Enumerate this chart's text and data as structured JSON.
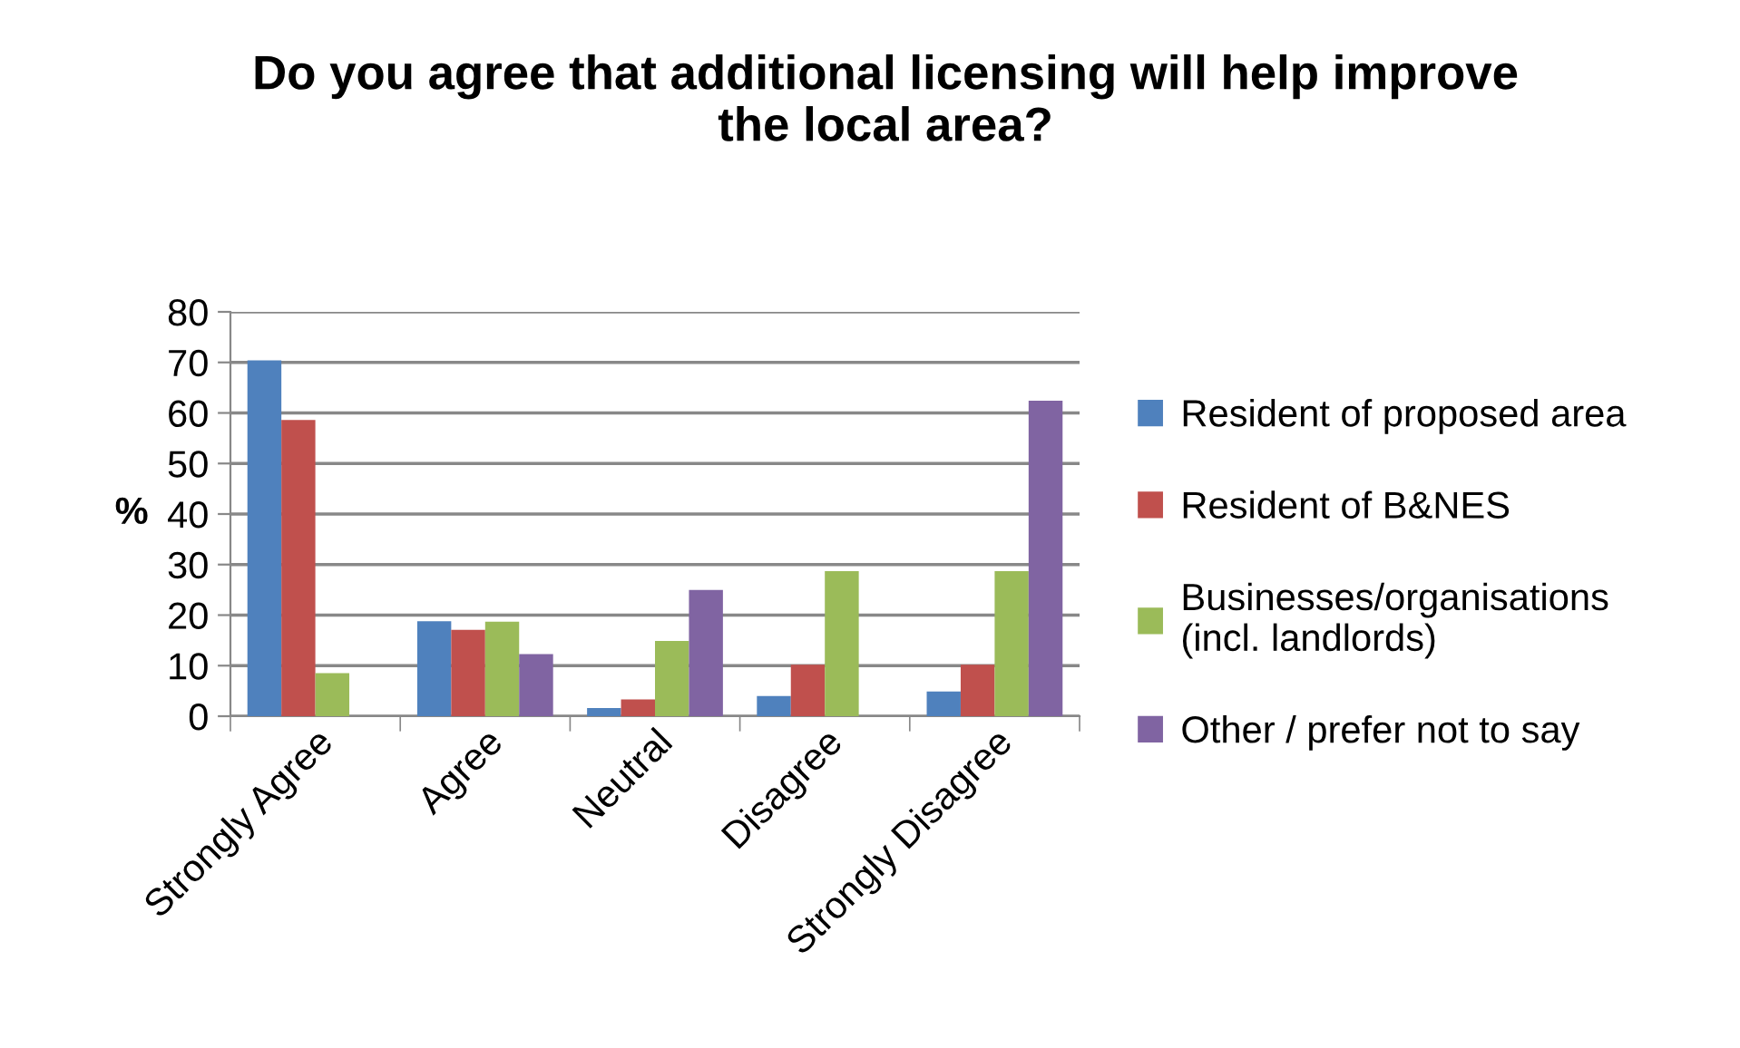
{
  "chart_data": {
    "type": "bar",
    "title": "Do you agree that additional licensing will help improve\nthe local area?",
    "ylabel": "%",
    "categories": [
      "Strongly Agree",
      "Agree",
      "Neutral",
      "Disagree",
      "Strongly Disagree"
    ],
    "series": [
      {
        "name": "Resident of proposed area",
        "color": "#4f81bd",
        "values": [
          70.4,
          18.8,
          1.6,
          4.0,
          4.9
        ]
      },
      {
        "name": "Resident of B&NES",
        "color": "#c0504d",
        "values": [
          58.6,
          17.1,
          3.3,
          10.2,
          10.2
        ]
      },
      {
        "name": "Businesses/organisations\n(incl. landlords)",
        "color": "#9bbb59",
        "values": [
          8.5,
          18.7,
          14.9,
          28.7,
          28.7
        ]
      },
      {
        "name": "Other / prefer not to say",
        "color": "#8064a2",
        "values": [
          0,
          12.3,
          25.0,
          0,
          62.4
        ]
      }
    ],
    "ylim": [
      0,
      80
    ],
    "yticks": [
      0,
      10,
      20,
      30,
      40,
      50,
      60,
      70,
      80
    ],
    "grid": "y",
    "legend": "right"
  }
}
